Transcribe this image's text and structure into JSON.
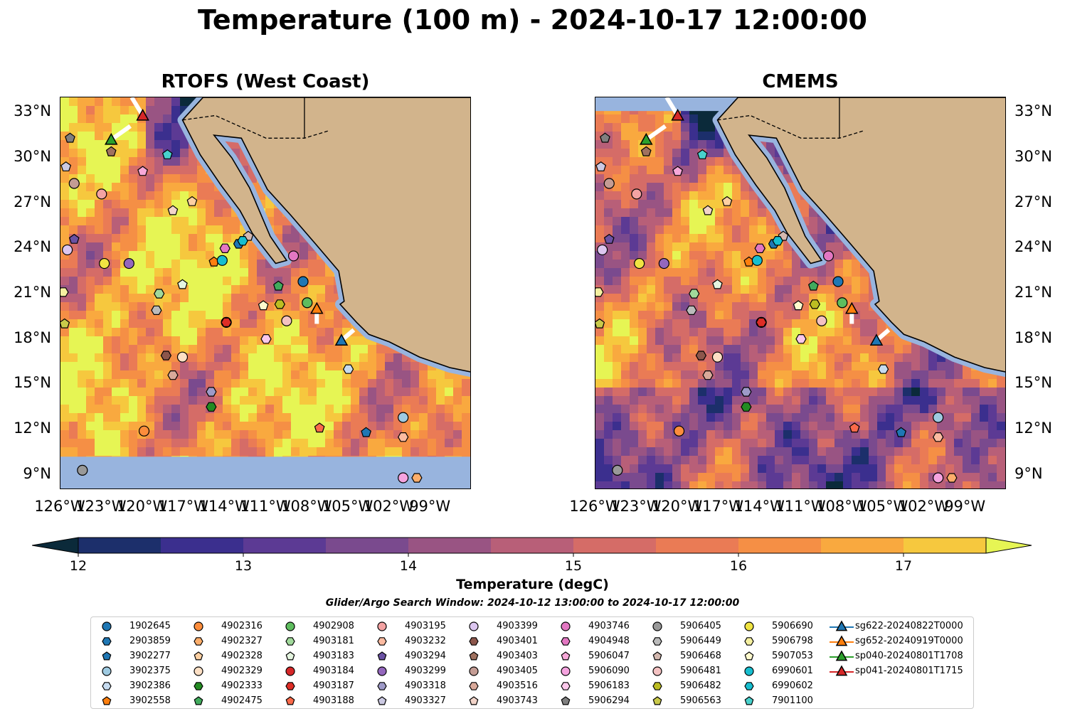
{
  "figure": {
    "title": "Temperature (100 m) - 2024-10-17 12:00:00",
    "panels": [
      "RTOFS (West Coast)",
      "CMEMS"
    ],
    "search_window": "Glider/Argo Search Window: 2024-10-12 13:00:00 to 2024-10-17 12:00:00",
    "colors": {
      "land": "#d2b48c",
      "shallow_water": "#98b4de",
      "border_line": "#000000"
    }
  },
  "chart_data": {
    "type": "heatmap",
    "variable": "Temperature (degC)",
    "depth_m": 100,
    "lon_range": [
      -126,
      -96
    ],
    "lat_range": [
      8,
      34
    ],
    "x_ticks": [
      "126°W",
      "123°W",
      "120°W",
      "117°W",
      "114°W",
      "111°W",
      "108°W",
      "105°W",
      "102°W",
      "99°W"
    ],
    "y_ticks": [
      "33°N",
      "30°N",
      "27°N",
      "24°N",
      "21°N",
      "18°N",
      "15°N",
      "12°N",
      "9°N"
    ],
    "colorbar": {
      "label": "Temperature (degC)",
      "ticks": [
        "12",
        "13",
        "14",
        "15",
        "16",
        "17"
      ],
      "min": 12,
      "max": 17.5,
      "step": 0.5,
      "extend": "both",
      "colors": [
        "#0b2a3a",
        "#1c2f6b",
        "#3b2f8e",
        "#5c3a94",
        "#7a4a8e",
        "#995483",
        "#b85f78",
        "#d56c67",
        "#ea7b55",
        "#f58f45",
        "#f9a93f",
        "#f6c83e",
        "#e6f554"
      ]
    },
    "gliders": [
      {
        "name": "sg622-20240822T0000",
        "color": "#1f77b4",
        "lon": -105.5,
        "lat": 17.9,
        "track": [
          [
            -105.5,
            17.9
          ],
          [
            -104.6,
            18.6
          ]
        ]
      },
      {
        "name": "sg652-20240919T0000",
        "color": "#ff7f0e",
        "lon": -107.3,
        "lat": 20.0,
        "track": [
          [
            -107.3,
            20.0
          ],
          [
            -107.3,
            19.0
          ]
        ]
      },
      {
        "name": "sp040-20240801T1708",
        "color": "#2ca02c",
        "lon": -122.3,
        "lat": 31.2,
        "track": [
          [
            -122.3,
            31.2
          ],
          [
            -120.9,
            32.1
          ]
        ]
      },
      {
        "name": "sp041-20240801T1715",
        "color": "#d62728",
        "lon": -120.0,
        "lat": 32.8,
        "track": [
          [
            -120.0,
            32.8
          ],
          [
            -120.8,
            34.0
          ]
        ]
      }
    ],
    "floats": [
      {
        "id": "1902645",
        "marker": "circle",
        "color": "#1f77b4",
        "lon": -108.3,
        "lat": 21.8
      },
      {
        "id": "2903859",
        "marker": "hexagon",
        "color": "#1f77b4",
        "lon": -113.0,
        "lat": 24.3
      },
      {
        "id": "3902277",
        "marker": "pentagon",
        "color": "#1f77b4",
        "lon": -103.7,
        "lat": 11.8
      },
      {
        "id": "3902375",
        "marker": "circle",
        "color": "#9ecae1",
        "lon": -101.0,
        "lat": 12.8
      },
      {
        "id": "3902386",
        "marker": "hexagon",
        "color": "#c6dbef",
        "lon": -105.0,
        "lat": 16.0
      },
      {
        "id": "3902558",
        "marker": "pentagon",
        "color": "#ff7f0e",
        "lon": -114.8,
        "lat": 23.1
      },
      {
        "id": "4902316",
        "marker": "circle",
        "color": "#fd8d3c",
        "lon": -119.9,
        "lat": 11.9
      },
      {
        "id": "4902327",
        "marker": "hexagon",
        "color": "#fdae6b",
        "lon": -100.0,
        "lat": 8.8
      },
      {
        "id": "4902328",
        "marker": "pentagon",
        "color": "#fdd0a2",
        "lon": -116.4,
        "lat": 27.1
      },
      {
        "id": "4902329",
        "marker": "circle",
        "color": "#fde0c5",
        "lon": -117.1,
        "lat": 16.8
      },
      {
        "id": "4902333",
        "marker": "hexagon",
        "color": "#238b22",
        "lon": -115.0,
        "lat": 13.5
      },
      {
        "id": "4902475",
        "marker": "pentagon",
        "color": "#41ab5d",
        "lon": -110.1,
        "lat": 21.5
      },
      {
        "id": "4902908",
        "marker": "circle",
        "color": "#5ebd5e",
        "lon": -108.0,
        "lat": 20.4
      },
      {
        "id": "4903181",
        "marker": "hexagon",
        "color": "#a1d99b",
        "lon": -118.8,
        "lat": 21.0
      },
      {
        "id": "4903183",
        "marker": "pentagon",
        "color": "#e5f5e0",
        "lon": -117.1,
        "lat": 21.6
      },
      {
        "id": "4903184",
        "marker": "circle",
        "color": "#d62728",
        "lon": -113.9,
        "lat": 19.1
      },
      {
        "id": "4903187",
        "marker": "hexagon",
        "color": "#de2d26",
        "lon": -113.9,
        "lat": 19.1
      },
      {
        "id": "4903188",
        "marker": "pentagon",
        "color": "#fb6a4a",
        "lon": -107.1,
        "lat": 12.1
      },
      {
        "id": "4903195",
        "marker": "circle",
        "color": "#f4a3a3",
        "lon": -123.0,
        "lat": 27.6
      },
      {
        "id": "4903232",
        "marker": "hexagon",
        "color": "#fcbba1",
        "lon": -101.0,
        "lat": 11.5
      },
      {
        "id": "4903294",
        "marker": "pentagon",
        "color": "#6a51a3",
        "lon": -125.0,
        "lat": 24.6
      },
      {
        "id": "4903299",
        "marker": "circle",
        "color": "#9467bd",
        "lon": -121.0,
        "lat": 23.0
      },
      {
        "id": "4903318",
        "marker": "hexagon",
        "color": "#9e9ac8",
        "lon": -115.0,
        "lat": 14.5
      },
      {
        "id": "4903327",
        "marker": "pentagon",
        "color": "#cbc9e2",
        "lon": -125.6,
        "lat": 29.4
      },
      {
        "id": "4903399",
        "marker": "circle",
        "color": "#dcc6f0",
        "lon": -125.5,
        "lat": 23.9
      },
      {
        "id": "4903401",
        "marker": "hexagon",
        "color": "#8c564b",
        "lon": -118.3,
        "lat": 16.9
      },
      {
        "id": "4903403",
        "marker": "pentagon",
        "color": "#a0715f",
        "lon": -122.3,
        "lat": 30.4
      },
      {
        "id": "4903405",
        "marker": "circle",
        "color": "#c49c94",
        "lon": -125.0,
        "lat": 28.3
      },
      {
        "id": "4903516",
        "marker": "hexagon",
        "color": "#d9a99a",
        "lon": -117.8,
        "lat": 15.6
      },
      {
        "id": "4903743",
        "marker": "pentagon",
        "color": "#f2d4c9",
        "lon": -117.8,
        "lat": 26.5
      },
      {
        "id": "4903746",
        "marker": "circle",
        "color": "#e377c2",
        "lon": -109.0,
        "lat": 23.5
      },
      {
        "id": "4904948",
        "marker": "hexagon",
        "color": "#e377c2",
        "lon": -114.0,
        "lat": 24.0
      },
      {
        "id": "5906047",
        "marker": "pentagon",
        "color": "#f7a8d8",
        "lon": -120.0,
        "lat": 29.1
      },
      {
        "id": "5906090",
        "marker": "circle",
        "color": "#f5a3df",
        "lon": -101.0,
        "lat": 8.8
      },
      {
        "id": "5906183",
        "marker": "hexagon",
        "color": "#fbc8ea",
        "lon": -111.0,
        "lat": 18.0
      },
      {
        "id": "5906294",
        "marker": "pentagon",
        "color": "#7f7f7f",
        "lon": -125.3,
        "lat": 31.3
      },
      {
        "id": "5906405",
        "marker": "circle",
        "color": "#999999",
        "lon": -124.4,
        "lat": 9.3
      },
      {
        "id": "5906449",
        "marker": "hexagon",
        "color": "#bbbbbb",
        "lon": -119.0,
        "lat": 19.9
      },
      {
        "id": "5906468",
        "marker": "pentagon",
        "color": "#d4b9b0",
        "lon": -112.3,
        "lat": 24.8
      },
      {
        "id": "5906481",
        "marker": "circle",
        "color": "#f4c2c2",
        "lon": -109.5,
        "lat": 19.2
      },
      {
        "id": "5906482",
        "marker": "hexagon",
        "color": "#bcbd22",
        "lon": -110.0,
        "lat": 20.3
      },
      {
        "id": "5906563",
        "marker": "pentagon",
        "color": "#c9c94a",
        "lon": -125.7,
        "lat": 19.0
      },
      {
        "id": "5906690",
        "marker": "circle",
        "color": "#f0e442",
        "lon": -122.8,
        "lat": 23.0
      },
      {
        "id": "5906798",
        "marker": "hexagon",
        "color": "#f5f0a0",
        "lon": -125.8,
        "lat": 21.1
      },
      {
        "id": "5907053",
        "marker": "pentagon",
        "color": "#fffacd",
        "lon": -111.2,
        "lat": 20.2
      },
      {
        "id": "6990601",
        "marker": "circle",
        "color": "#17becf",
        "lon": -114.2,
        "lat": 23.2
      },
      {
        "id": "6990602",
        "marker": "hexagon",
        "color": "#17becf",
        "lon": -112.7,
        "lat": 24.5
      },
      {
        "id": "7901100",
        "marker": "pentagon",
        "color": "#48d1cc",
        "lon": -118.2,
        "lat": 30.2
      }
    ]
  }
}
